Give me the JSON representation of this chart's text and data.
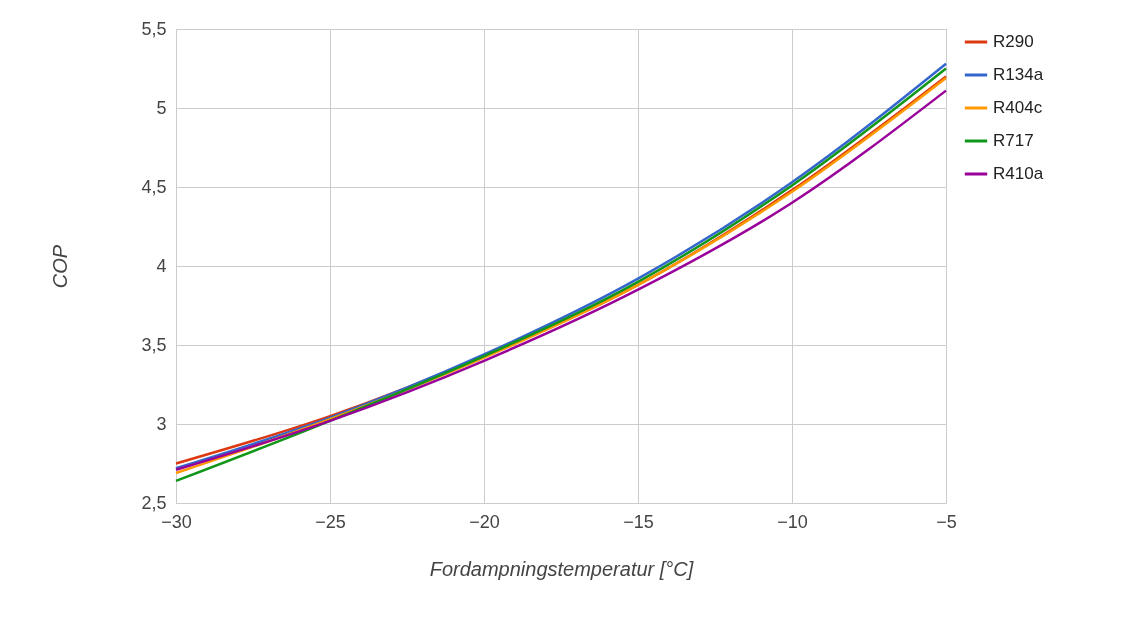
{
  "chart_data": {
    "type": "line",
    "xlabel": "Fordampningstemperatur [°C]",
    "ylabel": "COP",
    "x": [
      -30,
      -25,
      -20,
      -15,
      -10,
      -5
    ],
    "series": [
      {
        "name": "R290",
        "color": "#dc3912",
        "values": [
          2.75,
          3.05,
          3.43,
          3.88,
          4.48,
          5.2
        ]
      },
      {
        "name": "R134a",
        "color": "#3366cc",
        "values": [
          2.72,
          3.04,
          3.44,
          3.92,
          4.53,
          5.28
        ]
      },
      {
        "name": "R404c",
        "color": "#ff9900",
        "values": [
          2.69,
          3.03,
          3.42,
          3.88,
          4.47,
          5.19
        ]
      },
      {
        "name": "R717",
        "color": "#109618",
        "values": [
          2.64,
          3.02,
          3.43,
          3.9,
          4.51,
          5.25
        ]
      },
      {
        "name": "R410a",
        "color": "#990099",
        "values": [
          2.71,
          3.02,
          3.4,
          3.85,
          4.4,
          5.11
        ]
      }
    ],
    "xlim": [
      -30,
      -5
    ],
    "xticks": [
      {
        "value": -30,
        "label": "−30"
      },
      {
        "value": -25,
        "label": "−25"
      },
      {
        "value": -20,
        "label": "−20"
      },
      {
        "value": -15,
        "label": "−15"
      },
      {
        "value": -10,
        "label": "−10"
      },
      {
        "value": -5,
        "label": "−5"
      }
    ],
    "ylim": [
      2.5,
      5.5
    ],
    "yticks": [
      {
        "value": 2.5,
        "label": "2,5"
      },
      3,
      {
        "value": 3.5,
        "label": "3,5"
      },
      4,
      {
        "value": 4.5,
        "label": "4,5"
      },
      5,
      {
        "value": 5.5,
        "label": "5,5"
      }
    ],
    "grid": true,
    "legend": "top right",
    "marker": "none",
    "line_style": "solid"
  }
}
